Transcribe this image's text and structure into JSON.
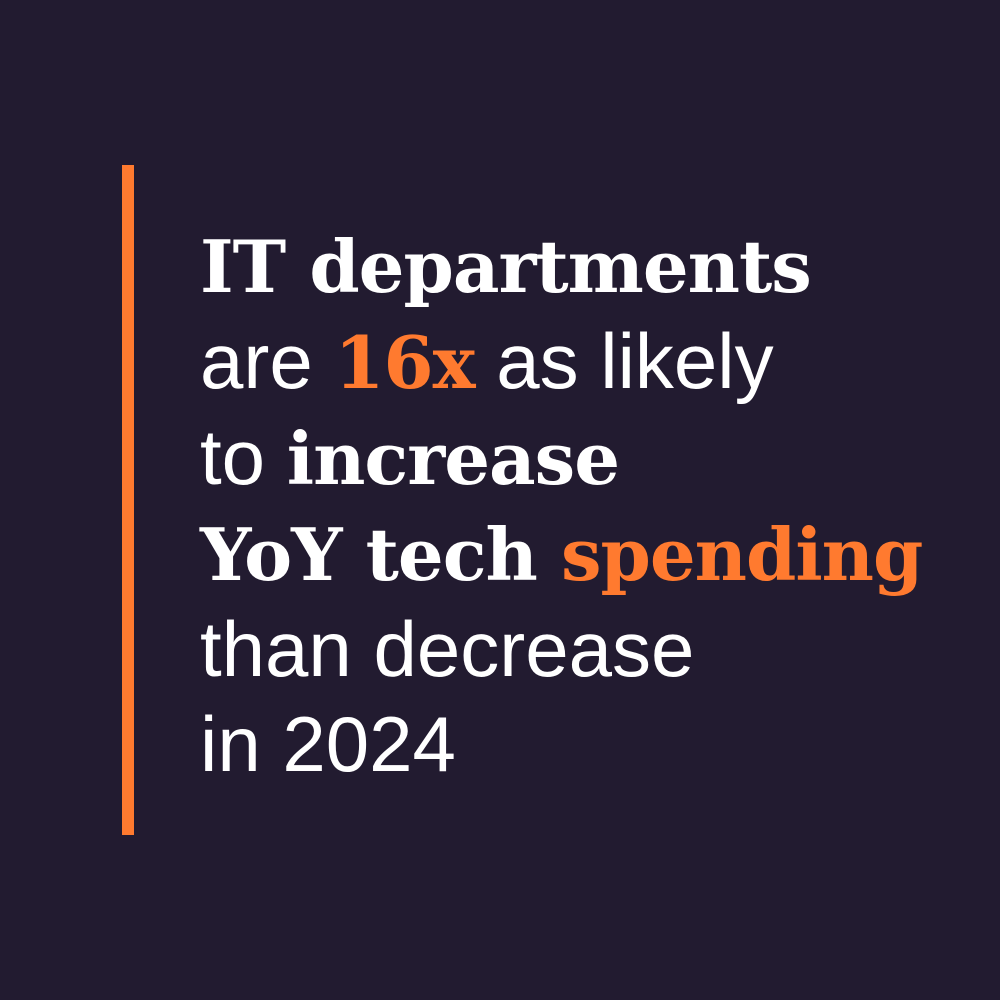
{
  "colors": {
    "background": "#221b30",
    "accent": "#ff7a2f",
    "text": "#ffffff"
  },
  "lines": [
    [
      {
        "t": "IT departments",
        "bold": true,
        "accent": false
      }
    ],
    [
      {
        "t": "are ",
        "bold": false,
        "accent": false
      },
      {
        "t": "16x",
        "bold": true,
        "accent": true
      },
      {
        "t": " as likely",
        "bold": false,
        "accent": false
      }
    ],
    [
      {
        "t": "to ",
        "bold": false,
        "accent": false
      },
      {
        "t": "increase",
        "bold": true,
        "accent": false
      }
    ],
    [
      {
        "t": "YoY tech ",
        "bold": true,
        "accent": false
      },
      {
        "t": "spending",
        "bold": true,
        "accent": true
      }
    ],
    [
      {
        "t": "than decrease",
        "bold": false,
        "accent": false
      }
    ],
    [
      {
        "t": "in 2024",
        "bold": false,
        "accent": false
      }
    ]
  ]
}
